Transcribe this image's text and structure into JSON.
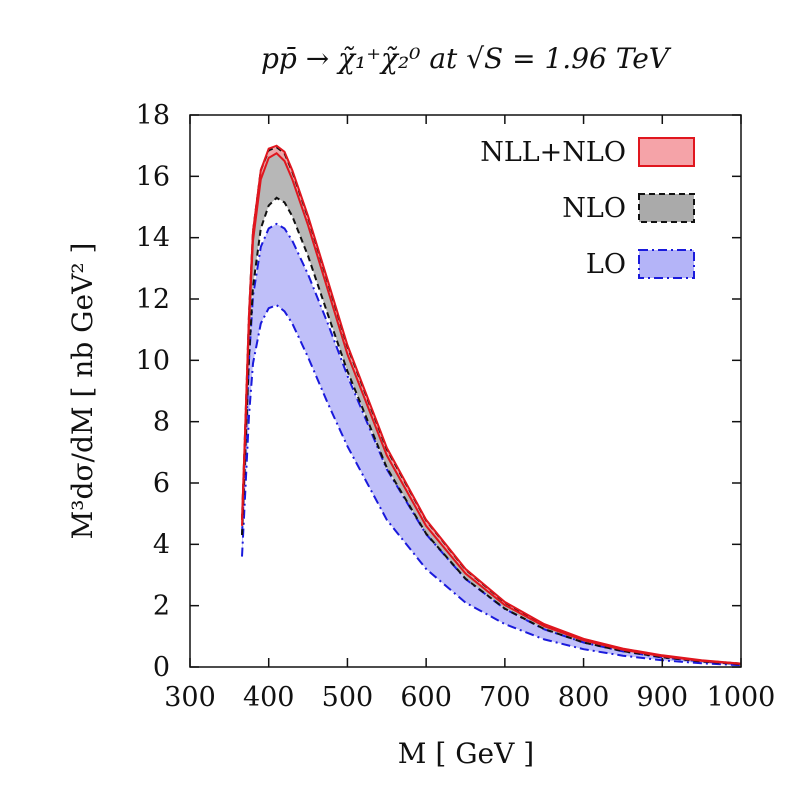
{
  "chart_data": {
    "type": "area",
    "title": "pp̄ → χ̃₁⁺χ̃₂⁰ at √S = 1.96 TeV",
    "xlabel": "M [ GeV ]",
    "ylabel": "M³dσ/dM [ nb GeV² ]",
    "xlim": [
      300,
      1000
    ],
    "ylim": [
      0,
      18
    ],
    "xticks": [
      300,
      400,
      500,
      600,
      700,
      800,
      900,
      1000
    ],
    "yticks": [
      0,
      2,
      4,
      6,
      8,
      10,
      12,
      14,
      16,
      18
    ],
    "legend_position": "top-right",
    "x": [
      366,
      370,
      375,
      380,
      390,
      400,
      410,
      420,
      430,
      450,
      475,
      500,
      550,
      600,
      650,
      700,
      750,
      800,
      850,
      900,
      950,
      1000
    ],
    "series": [
      {
        "name": "NLL+NLO",
        "legend": "NLL+NLO",
        "color": "#e0161e",
        "fill": "#f5a3a8",
        "dash": "",
        "lower": [
          4.6,
          7.5,
          11.2,
          13.9,
          15.9,
          16.6,
          16.75,
          16.5,
          15.9,
          14.4,
          12.3,
          10.2,
          6.9,
          4.6,
          3.05,
          2.02,
          1.33,
          0.87,
          0.56,
          0.35,
          0.2,
          0.1
        ],
        "upper": [
          4.8,
          7.7,
          11.5,
          14.2,
          16.2,
          16.9,
          17.0,
          16.8,
          16.2,
          14.7,
          12.6,
          10.5,
          7.15,
          4.8,
          3.2,
          2.12,
          1.4,
          0.92,
          0.6,
          0.38,
          0.22,
          0.11
        ]
      },
      {
        "name": "NLO",
        "legend": "NLO",
        "color": "#111111",
        "fill": "#aaaaaa",
        "dash": "6,4",
        "lower": [
          4.3,
          6.9,
          10.1,
          12.4,
          14.3,
          15.05,
          15.3,
          15.15,
          14.7,
          13.4,
          11.5,
          9.65,
          6.5,
          4.35,
          2.88,
          1.9,
          1.24,
          0.8,
          0.52,
          0.32,
          0.18,
          0.09
        ],
        "upper": [
          4.8,
          7.7,
          11.5,
          14.2,
          16.2,
          16.85,
          16.95,
          16.75,
          16.15,
          14.65,
          12.55,
          10.45,
          7.1,
          4.78,
          3.18,
          2.1,
          1.38,
          0.91,
          0.59,
          0.37,
          0.21,
          0.11
        ]
      },
      {
        "name": "LO",
        "legend": "LO",
        "color": "#1a1adc",
        "fill": "#b4b4f8",
        "dash": "9,4,2,4",
        "lower": [
          3.6,
          5.6,
          8.2,
          9.9,
          11.2,
          11.7,
          11.8,
          11.6,
          11.2,
          10.1,
          8.6,
          7.2,
          4.8,
          3.2,
          2.1,
          1.4,
          0.9,
          0.58,
          0.37,
          0.22,
          0.12,
          0.06
        ],
        "upper": [
          4.3,
          6.8,
          10.0,
          12.1,
          13.7,
          14.3,
          14.45,
          14.3,
          13.9,
          12.8,
          11.2,
          9.5,
          6.45,
          4.33,
          2.87,
          1.89,
          1.23,
          0.8,
          0.51,
          0.31,
          0.18,
          0.09
        ]
      }
    ]
  }
}
